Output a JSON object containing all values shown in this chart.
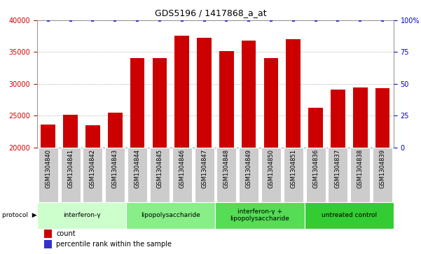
{
  "title": "GDS5196 / 1417868_a_at",
  "samples": [
    "GSM1304840",
    "GSM1304841",
    "GSM1304842",
    "GSM1304843",
    "GSM1304844",
    "GSM1304845",
    "GSM1304846",
    "GSM1304847",
    "GSM1304848",
    "GSM1304849",
    "GSM1304850",
    "GSM1304851",
    "GSM1304836",
    "GSM1304837",
    "GSM1304838",
    "GSM1304839"
  ],
  "counts": [
    23600,
    25100,
    23500,
    25500,
    34100,
    34100,
    37600,
    37200,
    35200,
    36800,
    34100,
    37000,
    26200,
    29100,
    29400,
    29300
  ],
  "percentile_ranks": [
    100,
    100,
    100,
    100,
    100,
    100,
    100,
    100,
    100,
    100,
    100,
    100,
    100,
    100,
    100,
    100
  ],
  "bar_color": "#cc0000",
  "dot_color": "#3333cc",
  "ylim_left": [
    20000,
    40000
  ],
  "ylim_right": [
    0,
    100
  ],
  "yticks_left": [
    20000,
    25000,
    30000,
    35000,
    40000
  ],
  "yticks_right": [
    0,
    25,
    50,
    75,
    100
  ],
  "groups": [
    {
      "label": "interferon-γ",
      "start": 0,
      "end": 4,
      "color": "#ccffcc"
    },
    {
      "label": "lipopolysaccharide",
      "start": 4,
      "end": 8,
      "color": "#88ee88"
    },
    {
      "label": "interferon-γ +\nlipopolysaccharide",
      "start": 8,
      "end": 12,
      "color": "#55dd55"
    },
    {
      "label": "untreated control",
      "start": 12,
      "end": 16,
      "color": "#33cc33"
    }
  ],
  "bar_color_left": "#cc0000",
  "right_axis_color": "#0000cc",
  "grid_color": "#aaaaaa",
  "xtick_bg_color": "#cccccc",
  "sample_label_fontsize": 6,
  "title_fontsize": 9,
  "axis_fontsize": 7
}
